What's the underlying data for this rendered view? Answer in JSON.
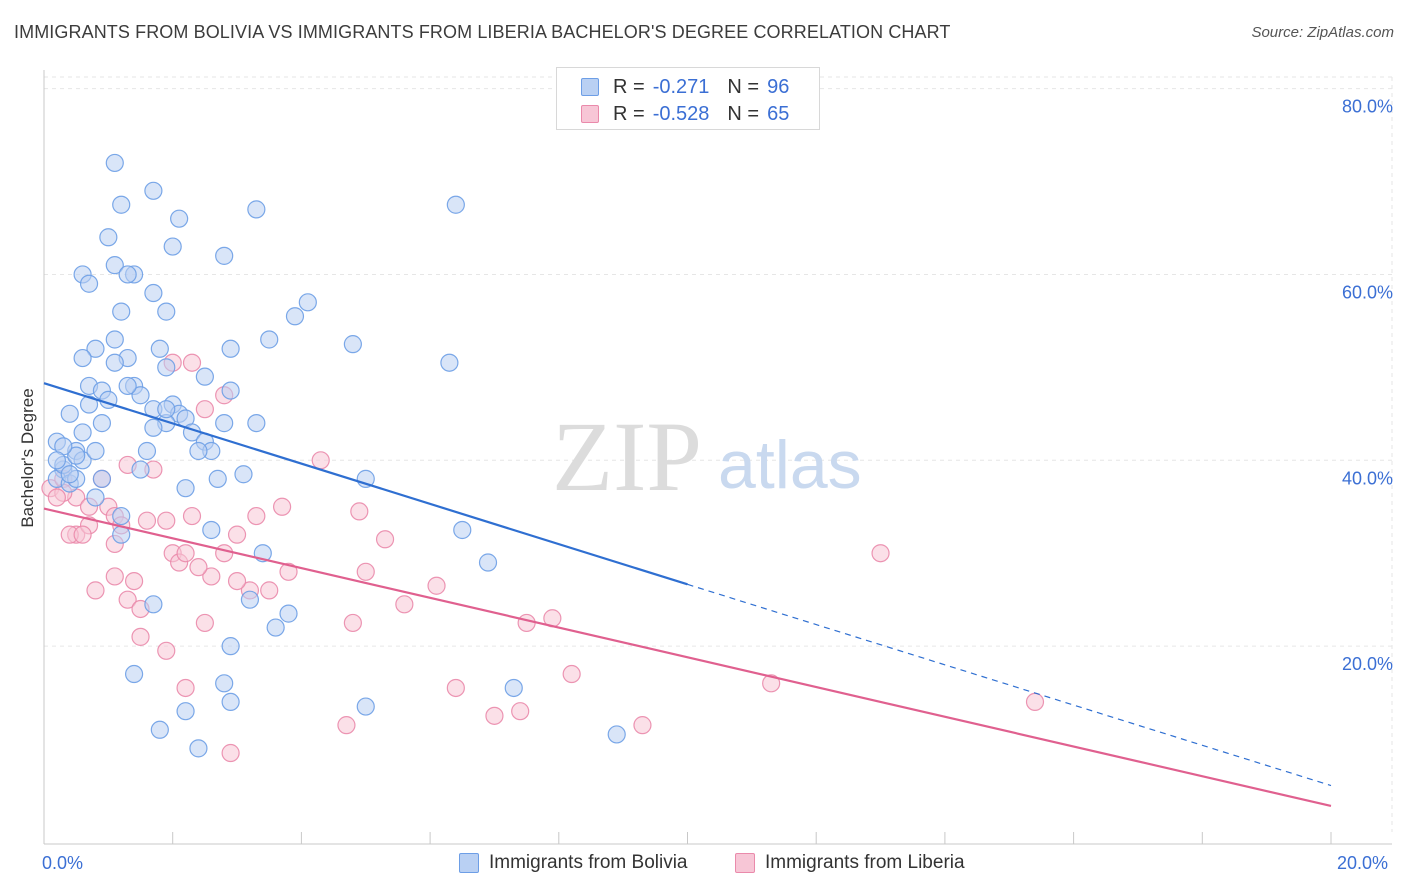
{
  "title": "IMMIGRANTS FROM BOLIVIA VS IMMIGRANTS FROM LIBERIA BACHELOR'S DEGREE CORRELATION CHART",
  "source": "Source: ZipAtlas.com",
  "watermark": {
    "zip": "ZIP",
    "atlas": "atlas"
  },
  "legend": {
    "r_label": "R =",
    "n_label": "N =",
    "rows": [
      {
        "r": "-0.271",
        "n": "96",
        "color": "#6d9ee6",
        "fill": "#b9d0f3"
      },
      {
        "r": "-0.528",
        "n": "65",
        "color": "#ea8aab",
        "fill": "#f7c6d6"
      }
    ]
  },
  "bottom_legend": {
    "bolivia": "Immigrants from Bolivia",
    "liberia": "Immigrants from Liberia"
  },
  "x_tick_labels": {
    "left": "0.0%",
    "right": "20.0%"
  },
  "y_tick_labels": [
    "20.0%",
    "40.0%",
    "60.0%",
    "80.0%"
  ],
  "ylabel": "Bachelor's Degree",
  "chart_data": {
    "type": "scatter",
    "xlim": [
      0,
      20
    ],
    "ylim": [
      0,
      82
    ],
    "grid": true,
    "series": [
      {
        "name": "Immigrants from Bolivia",
        "color": "#6d9ee6",
        "points": [
          [
            0.2,
            42
          ],
          [
            0.4,
            45
          ],
          [
            0.5,
            41
          ],
          [
            0.6,
            43
          ],
          [
            0.6,
            40
          ],
          [
            0.7,
            46
          ],
          [
            0.8,
            41
          ],
          [
            0.9,
            44
          ],
          [
            0.3,
            39
          ],
          [
            0.2,
            38
          ],
          [
            0.4,
            37.5
          ],
          [
            0.3,
            39.5
          ],
          [
            0.7,
            48
          ],
          [
            0.9,
            47.5
          ],
          [
            1.0,
            46.5
          ],
          [
            0.8,
            52
          ],
          [
            0.6,
            51
          ],
          [
            1.1,
            53
          ],
          [
            1.3,
            51
          ],
          [
            1.2,
            56
          ],
          [
            1.4,
            48
          ],
          [
            1.5,
            47
          ],
          [
            1.7,
            45.5
          ],
          [
            1.6,
            41
          ],
          [
            1.8,
            52
          ],
          [
            1.9,
            50
          ],
          [
            2.0,
            46
          ],
          [
            1.1,
            72
          ],
          [
            1.0,
            64
          ],
          [
            1.1,
            61
          ],
          [
            0.6,
            60
          ],
          [
            0.7,
            59
          ],
          [
            1.4,
            60
          ],
          [
            1.7,
            58
          ],
          [
            1.3,
            60
          ],
          [
            1.7,
            69
          ],
          [
            2.1,
            66
          ],
          [
            2.0,
            63
          ],
          [
            1.9,
            56
          ],
          [
            1.2,
            67.5
          ],
          [
            1.3,
            48
          ],
          [
            2.1,
            45
          ],
          [
            2.2,
            44.5
          ],
          [
            1.9,
            44
          ],
          [
            2.3,
            43
          ],
          [
            2.5,
            42
          ],
          [
            2.6,
            41
          ],
          [
            2.4,
            41
          ],
          [
            1.7,
            43.5
          ],
          [
            2.2,
            37
          ],
          [
            2.8,
            44
          ],
          [
            2.7,
            38
          ],
          [
            2.9,
            47.5
          ],
          [
            2.9,
            52
          ],
          [
            2.8,
            62
          ],
          [
            3.3,
            67
          ],
          [
            4.1,
            57
          ],
          [
            4.8,
            52.5
          ],
          [
            3.5,
            53
          ],
          [
            3.9,
            55.5
          ],
          [
            3.3,
            44
          ],
          [
            3.1,
            38.5
          ],
          [
            3.4,
            30
          ],
          [
            3.2,
            25
          ],
          [
            2.6,
            32.5
          ],
          [
            2.5,
            49
          ],
          [
            2.8,
            16
          ],
          [
            2.9,
            14
          ],
          [
            2.9,
            20
          ],
          [
            3.8,
            23.5
          ],
          [
            3.6,
            22
          ],
          [
            5.0,
            38
          ],
          [
            6.4,
            67.5
          ],
          [
            6.3,
            50.5
          ],
          [
            6.5,
            32.5
          ],
          [
            6.9,
            29
          ],
          [
            7.3,
            15.5
          ],
          [
            8.9,
            10.5
          ],
          [
            5.0,
            13.5
          ],
          [
            2.2,
            13
          ],
          [
            1.8,
            11
          ],
          [
            2.4,
            9
          ],
          [
            1.4,
            17
          ],
          [
            1.7,
            24.5
          ],
          [
            1.2,
            34
          ],
          [
            1.2,
            32
          ],
          [
            0.8,
            36
          ],
          [
            0.5,
            40.5
          ],
          [
            0.3,
            41.5
          ],
          [
            0.5,
            38
          ],
          [
            1.1,
            50.5
          ],
          [
            1.9,
            45.5
          ],
          [
            0.4,
            38.5
          ],
          [
            0.9,
            38
          ],
          [
            1.5,
            39
          ],
          [
            0.2,
            40
          ]
        ]
      },
      {
        "name": "Immigrants from Liberia",
        "color": "#ea8aab",
        "points": [
          [
            0.1,
            37
          ],
          [
            0.3,
            38
          ],
          [
            0.5,
            36
          ],
          [
            0.7,
            35
          ],
          [
            0.5,
            32
          ],
          [
            0.9,
            38
          ],
          [
            1.0,
            35
          ],
          [
            1.1,
            34
          ],
          [
            1.1,
            31
          ],
          [
            0.8,
            26
          ],
          [
            1.3,
            25
          ],
          [
            1.5,
            24
          ],
          [
            1.5,
            21
          ],
          [
            1.9,
            19.5
          ],
          [
            2.0,
            30
          ],
          [
            2.1,
            29
          ],
          [
            2.2,
            30
          ],
          [
            2.2,
            15.5
          ],
          [
            2.5,
            22.5
          ],
          [
            2.6,
            27.5
          ],
          [
            2.8,
            30
          ],
          [
            2.9,
            8.5
          ],
          [
            3.0,
            32
          ],
          [
            3.2,
            26
          ],
          [
            3.3,
            34
          ],
          [
            3.5,
            26
          ],
          [
            3.8,
            28
          ],
          [
            3.7,
            35
          ],
          [
            4.3,
            40
          ],
          [
            4.7,
            11.5
          ],
          [
            4.8,
            22.5
          ],
          [
            4.9,
            34.5
          ],
          [
            5.0,
            28
          ],
          [
            5.3,
            31.5
          ],
          [
            5.6,
            24.5
          ],
          [
            6.1,
            26.5
          ],
          [
            6.4,
            15.5
          ],
          [
            7.0,
            12.5
          ],
          [
            7.4,
            13
          ],
          [
            7.5,
            22.5
          ],
          [
            7.9,
            23
          ],
          [
            8.2,
            17
          ],
          [
            9.3,
            11.5
          ],
          [
            11.3,
            16
          ],
          [
            13.0,
            30
          ],
          [
            15.4,
            14
          ],
          [
            1.3,
            39.5
          ],
          [
            1.7,
            39
          ],
          [
            1.9,
            33.5
          ],
          [
            2.0,
            50.5
          ],
          [
            2.3,
            50.5
          ],
          [
            2.5,
            45.5
          ],
          [
            2.8,
            47
          ],
          [
            0.3,
            36.5
          ],
          [
            0.7,
            33
          ],
          [
            1.2,
            33
          ],
          [
            1.6,
            33.5
          ],
          [
            0.4,
            32
          ],
          [
            0.6,
            32
          ],
          [
            1.4,
            27
          ],
          [
            2.4,
            28.5
          ],
          [
            3.0,
            27
          ],
          [
            2.3,
            34
          ],
          [
            1.1,
            27.5
          ],
          [
            0.2,
            36
          ]
        ]
      }
    ],
    "trendlines": [
      {
        "series": "Immigrants from Bolivia",
        "x0": 0,
        "y0": 48.3,
        "x1": 20,
        "y1": 5,
        "solid_until_x": 10
      },
      {
        "series": "Immigrants from Liberia",
        "x0": 0,
        "y0": 34.8,
        "x1": 20,
        "y1": 2.8
      }
    ]
  }
}
